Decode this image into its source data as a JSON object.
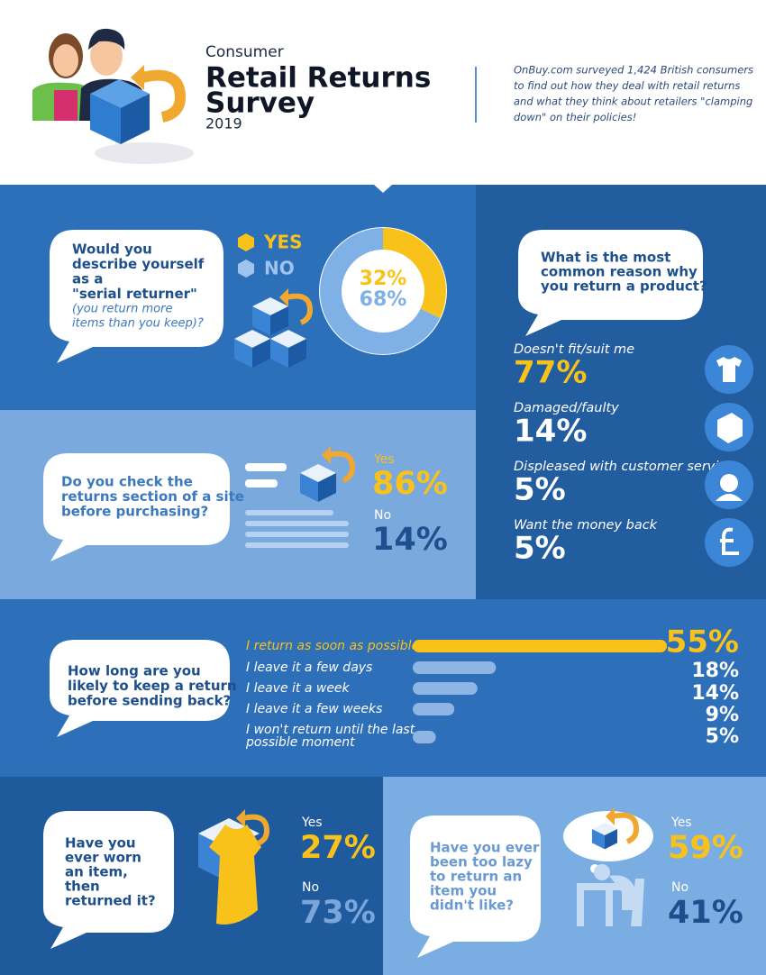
{
  "header": {
    "kicker": "Consumer",
    "title_lines": [
      "Retail Returns",
      "Survey"
    ],
    "year": "2019",
    "intro_lines": [
      "OnBuy.com surveyed 1,424 British consumers",
      "to find out how they deal with retail returns",
      "and what they think about retailers \"clamping",
      "down\" on their policies!"
    ]
  },
  "serial_returner": {
    "question_lines": [
      "Would you",
      "describe yourself",
      "as a",
      "\"serial returner\""
    ],
    "note_lines": [
      "(you return more",
      "items than you keep)?"
    ],
    "legend": [
      "YES",
      "NO"
    ],
    "answers": [
      {
        "value": 32,
        "label": "32%"
      },
      {
        "value": 68,
        "label": "68%"
      }
    ]
  },
  "reasons": {
    "question_lines": [
      "What is the most",
      "common reason why",
      "you return a product?"
    ],
    "items": [
      {
        "label": "Doesn't fit/suit me",
        "value": 77,
        "value_label": "77%"
      },
      {
        "label": "Damaged/faulty",
        "value": 14,
        "value_label": "14%"
      },
      {
        "label": "Displeased with customer service",
        "value": 5,
        "value_label": "5%"
      },
      {
        "label": "Want the money back",
        "value": 5,
        "value_label": "5%"
      }
    ]
  },
  "check_returns": {
    "question_lines": [
      "Do you check the",
      "returns section of a site",
      "before purchasing?"
    ],
    "answers": [
      {
        "label": "Yes",
        "value": 86,
        "value_label": "86%"
      },
      {
        "label": "No",
        "value": 14,
        "value_label": "14%"
      }
    ]
  },
  "how_long": {
    "question_lines": [
      "How long are you",
      "likely to keep a return",
      "before sending back?"
    ],
    "items": [
      {
        "label_lines": [
          "I return as soon as possible"
        ],
        "value": 55,
        "value_label": "55%"
      },
      {
        "label_lines": [
          "I leave it a few days"
        ],
        "value": 18,
        "value_label": "18%"
      },
      {
        "label_lines": [
          "I leave it a week"
        ],
        "value": 14,
        "value_label": "14%"
      },
      {
        "label_lines": [
          "I leave it a few weeks"
        ],
        "value": 9,
        "value_label": "9%"
      },
      {
        "label_lines": [
          "I won't return until the last",
          "possible moment"
        ],
        "value": 5,
        "value_label": "5%"
      }
    ]
  },
  "worn": {
    "question_lines": [
      "Have you",
      "ever worn",
      "an item,",
      "then",
      "returned it?"
    ],
    "answers": [
      {
        "label": "Yes",
        "value": 27,
        "value_label": "27%"
      },
      {
        "label": "No",
        "value": 73,
        "value_label": "73%"
      }
    ]
  },
  "lazy": {
    "question_lines": [
      "Have you ever",
      "been too lazy",
      "to return an",
      "item you",
      "didn't like?"
    ],
    "answers": [
      {
        "label": "Yes",
        "value": 59,
        "value_label": "59%"
      },
      {
        "label": "No",
        "value": 41,
        "value_label": "41%"
      }
    ]
  }
}
